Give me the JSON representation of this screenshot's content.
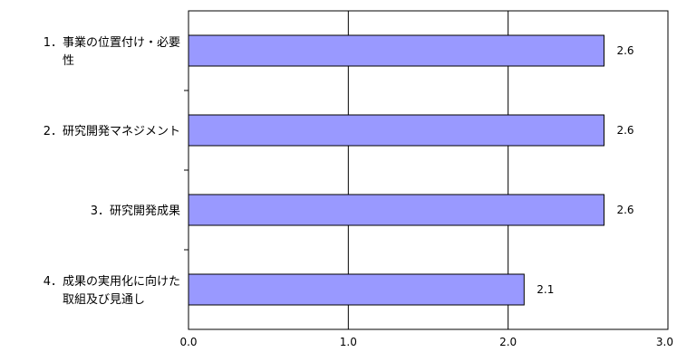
{
  "chart_data": {
    "type": "bar",
    "orientation": "horizontal",
    "categories": [
      [
        "1．事業の位置付け・必要",
        "性"
      ],
      [
        "2．研究開発マネジメント"
      ],
      [
        "3．研究開発成果"
      ],
      [
        "4．成果の実用化に向けた",
        "取組及び見通し"
      ]
    ],
    "values": [
      2.6,
      2.6,
      2.6,
      2.1
    ],
    "data_labels": [
      "2.6",
      "2.6",
      "2.6",
      "2.1"
    ],
    "x_ticks": [
      "0.0",
      "1.0",
      "2.0",
      "3.0"
    ],
    "xlim": [
      0,
      3
    ],
    "grid": true,
    "title": "",
    "xlabel": "",
    "ylabel": "",
    "colors": {
      "bar_fill": "#9999ff",
      "bar_stroke": "#000000",
      "grid": "#000000"
    }
  }
}
